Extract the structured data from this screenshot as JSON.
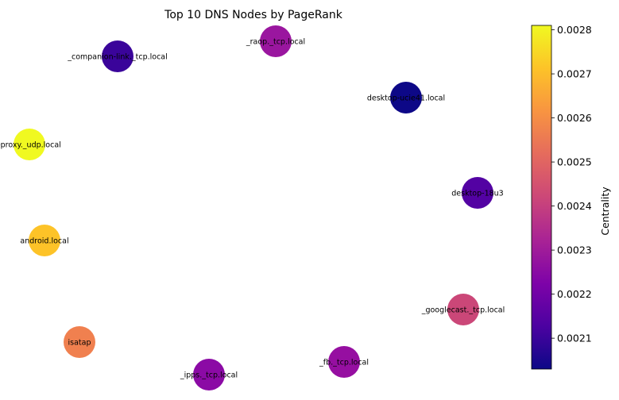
{
  "chart_data": {
    "type": "network",
    "title": "Top 10 DNS Nodes by PageRank",
    "colorbar": {
      "label": "Centrality",
      "colormap": "plasma",
      "range": [
        0.00203,
        0.00281
      ],
      "ticks": [
        "0.0021",
        "0.0022",
        "0.0023",
        "0.0024",
        "0.0025",
        "0.0026",
        "0.0027",
        "0.0028"
      ],
      "tick_values": [
        0.0021,
        0.0022,
        0.0023,
        0.0024,
        0.0025,
        0.0026,
        0.0027,
        0.0028
      ]
    },
    "nodes": [
      {
        "label": "_companion-link._tcp.local",
        "centrality": 0.0021,
        "color": "#3a049a"
      },
      {
        "label": "_raop._tcp.local",
        "centrality": 0.00225,
        "color": "#9a169f"
      },
      {
        "label": "desktop-ucie41.local",
        "centrality": 0.00203,
        "color": "#0d0887"
      },
      {
        "label": "-proxy._udp.local",
        "centrality": 0.00281,
        "color": "#f0f921"
      },
      {
        "label": "desktop-18u3",
        "centrality": 0.00213,
        "color": "#5302a3"
      },
      {
        "label": "android.local",
        "centrality": 0.00272,
        "color": "#fdc328"
      },
      {
        "label": "_googlecast._tcp.local",
        "centrality": 0.00243,
        "color": "#cb4778"
      },
      {
        "label": "isatap",
        "centrality": 0.0026,
        "color": "#f0804f"
      },
      {
        "label": "_ipps._tcp.local",
        "centrality": 0.00223,
        "color": "#8b0aa5"
      },
      {
        "label": "_fb._tcp.local",
        "centrality": 0.00224,
        "color": "#960fa1"
      }
    ]
  }
}
